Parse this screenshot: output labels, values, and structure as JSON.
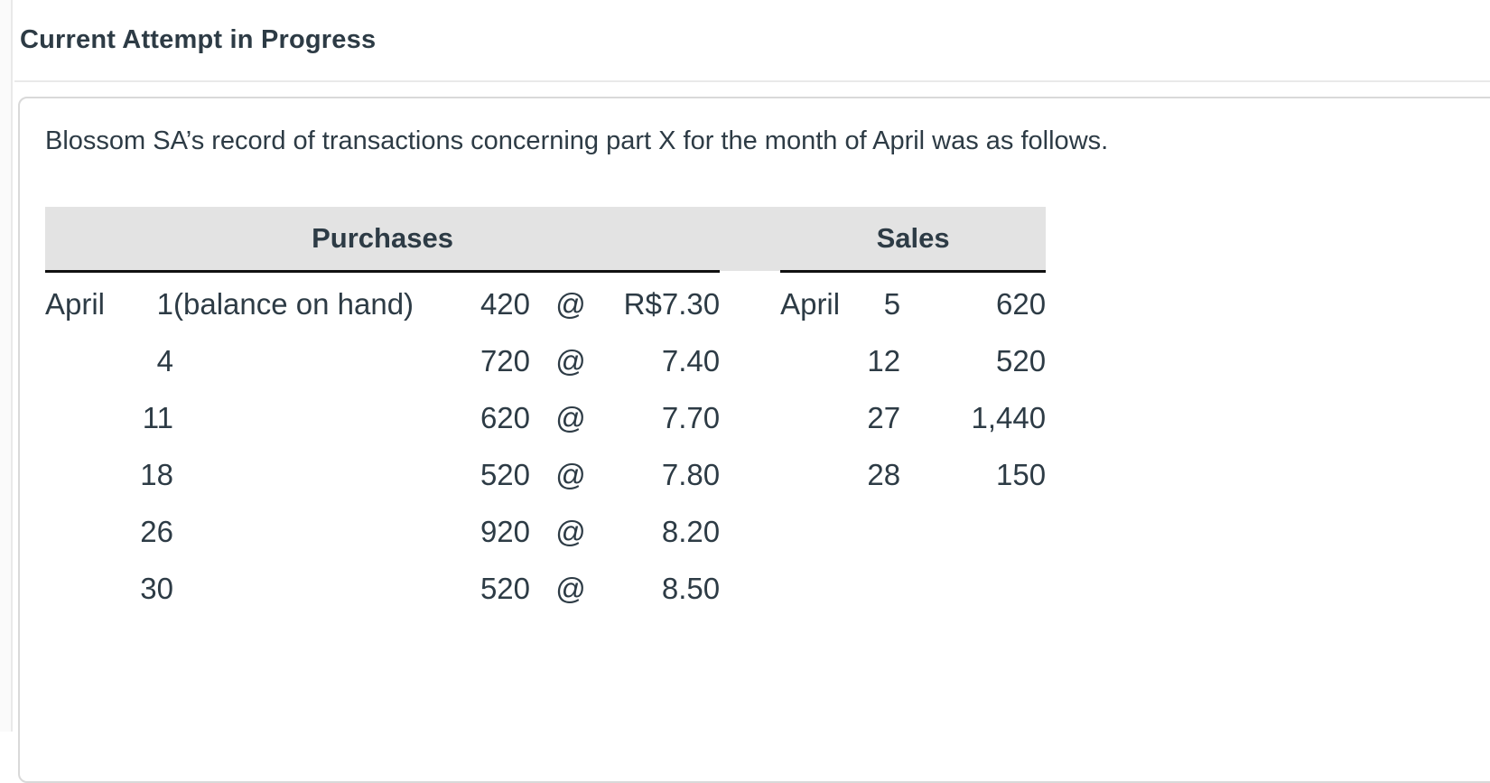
{
  "header": {
    "title": "Current Attempt in Progress"
  },
  "question": {
    "intro": "Blossom SA’s record of transactions concerning part X for the month of April was as follows."
  },
  "table": {
    "purchases_header": "Purchases",
    "sales_header": "Sales",
    "rows": [
      {
        "p_month": "April",
        "p_day": "1",
        "p_desc": "(balance on hand)",
        "p_qty": "420",
        "p_at": "@",
        "p_price": "R$7.30",
        "s_month": "April",
        "s_day": "5",
        "s_qty": "620"
      },
      {
        "p_month": "",
        "p_day": "4",
        "p_desc": "",
        "p_qty": "720",
        "p_at": "@",
        "p_price": "7.40",
        "s_month": "",
        "s_day": "12",
        "s_qty": "520"
      },
      {
        "p_month": "",
        "p_day": "11",
        "p_desc": "",
        "p_qty": "620",
        "p_at": "@",
        "p_price": "7.70",
        "s_month": "",
        "s_day": "27",
        "s_qty": "1,440"
      },
      {
        "p_month": "",
        "p_day": "18",
        "p_desc": "",
        "p_qty": "520",
        "p_at": "@",
        "p_price": "7.80",
        "s_month": "",
        "s_day": "28",
        "s_qty": "150"
      },
      {
        "p_month": "",
        "p_day": "26",
        "p_desc": "",
        "p_qty": "920",
        "p_at": "@",
        "p_price": "8.20",
        "s_month": "",
        "s_day": "",
        "s_qty": ""
      },
      {
        "p_month": "",
        "p_day": "30",
        "p_desc": "",
        "p_qty": "520",
        "p_at": "@",
        "p_price": "8.50",
        "s_month": "",
        "s_day": "",
        "s_qty": ""
      }
    ]
  },
  "colors": {
    "ink": "#2d3b45",
    "table_header_bg": "#e3e3e3",
    "table_rule": "#111111",
    "card_border": "#d9d9d9",
    "divider": "#e9e9e9",
    "page_bg": "#ffffff",
    "strip_bg": "#fafafa"
  }
}
